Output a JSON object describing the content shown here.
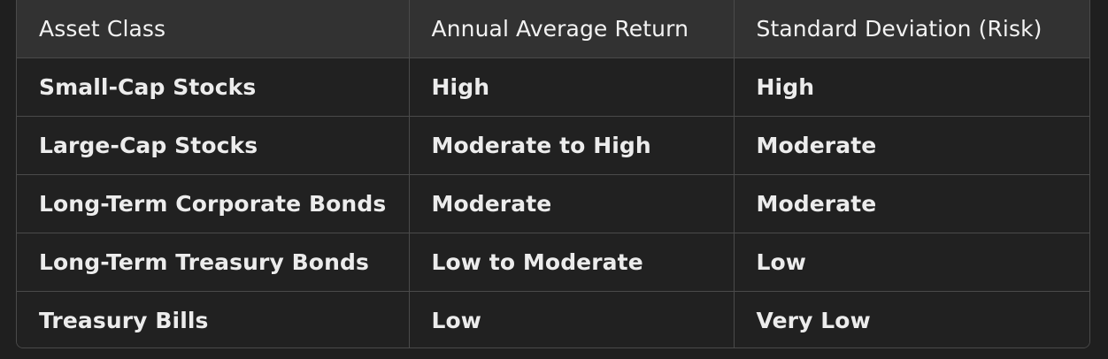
{
  "table": {
    "headers": [
      "Asset Class",
      "Annual Average Return",
      "Standard Deviation (Risk)"
    ],
    "rows": [
      [
        "Small-Cap Stocks",
        "High",
        "High"
      ],
      [
        "Large-Cap Stocks",
        "Moderate to High",
        "Moderate"
      ],
      [
        "Long-Term Corporate Bonds",
        "Moderate",
        "Moderate"
      ],
      [
        "Long-Term Treasury Bonds",
        "Low to Moderate",
        "Low"
      ],
      [
        "Treasury Bills",
        "Low",
        "Very Low"
      ]
    ]
  }
}
